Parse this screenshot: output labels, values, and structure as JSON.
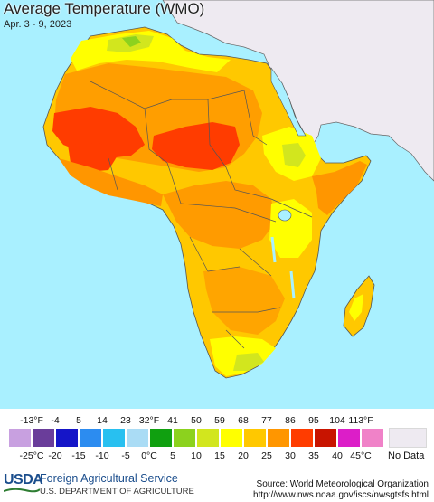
{
  "title": "Average Temperature (WMO)",
  "date_range": "Apr. 3 - 9, 2023",
  "legend": {
    "fahrenheit_labels": [
      "-13°F",
      "-4",
      "5",
      "14",
      "23",
      "32°F",
      "41",
      "50",
      "59",
      "68",
      "77",
      "86",
      "95",
      "104",
      "113°F"
    ],
    "celsius_labels": [
      "-25°C",
      "-20",
      "-15",
      "-10",
      "-5",
      "0°C",
      "5",
      "10",
      "15",
      "20",
      "25",
      "30",
      "35",
      "40",
      "45°C"
    ],
    "colors": [
      "#c8a0e0",
      "#6a3d9a",
      "#1515c8",
      "#2c8cf0",
      "#28c0f0",
      "#aadcf5",
      "#10a010",
      "#8cd21e",
      "#d2e61e",
      "#ffff00",
      "#ffc800",
      "#ff9600",
      "#ff3c00",
      "#c81400",
      "#dc1ec8",
      "#f082c8"
    ],
    "no_data_label": "No Data",
    "no_data_color": "#eeeaf1"
  },
  "map_colors": {
    "ocean": "#a9f0ff",
    "no_data_land": "#eeeaf1",
    "band_25_30": "#ffc800",
    "band_30_35": "#ff9600",
    "band_35_40": "#ff3c00",
    "band_20_25": "#ffff00",
    "band_15_20": "#d2e61e",
    "band_10_15": "#8cd21e",
    "lake": "#a9f0ff",
    "borders": "#555555"
  },
  "footer": {
    "logo_text": "USDA",
    "agency": "Foreign Agricultural Service",
    "department": "U.S. DEPARTMENT OF AGRICULTURE",
    "source": "Source: World Meteorological Organization",
    "url": "http://www.nws.noaa.gov/iscs/nwsgtsfs.html"
  }
}
